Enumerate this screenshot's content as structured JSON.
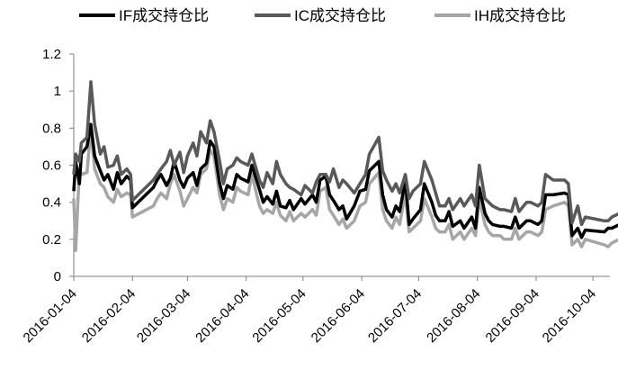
{
  "chart_data": {
    "type": "line",
    "title": "",
    "xlabel": "",
    "ylabel": "",
    "ylim": [
      0,
      1.2
    ],
    "yticks": [
      "0",
      "0.2",
      "0.4",
      "0.6",
      "0.8",
      "1",
      "1.2"
    ],
    "xticks": [
      "2016-01-04",
      "2016-02-04",
      "2016-03-04",
      "2016-04-04",
      "2016-05-04",
      "2016-06-04",
      "2016-07-04",
      "2016-08-04",
      "2016-09-04",
      "2016-10-04"
    ],
    "grid": false,
    "legend": "top",
    "series": [
      {
        "name": "IF成交持仓比",
        "color": "#000000",
        "x": [
          "2016-01-04",
          "2016-01-05",
          "2016-01-07",
          "2016-01-08",
          "2016-01-11",
          "2016-01-13",
          "2016-01-15",
          "2016-01-18",
          "2016-01-20",
          "2016-01-22",
          "2016-01-25",
          "2016-01-27",
          "2016-01-29",
          "2016-02-01",
          "2016-02-03",
          "2016-02-04",
          "2016-02-15",
          "2016-02-17",
          "2016-02-19",
          "2016-02-22",
          "2016-02-24",
          "2016-02-26",
          "2016-02-29",
          "2016-03-02",
          "2016-03-04",
          "2016-03-07",
          "2016-03-09",
          "2016-03-11",
          "2016-03-14",
          "2016-03-16",
          "2016-03-18",
          "2016-03-21",
          "2016-03-23",
          "2016-03-25",
          "2016-03-28",
          "2016-03-30",
          "2016-04-01",
          "2016-04-05",
          "2016-04-07",
          "2016-04-11",
          "2016-04-13",
          "2016-04-15",
          "2016-04-18",
          "2016-04-20",
          "2016-04-22",
          "2016-04-25",
          "2016-04-27",
          "2016-04-29",
          "2016-05-03",
          "2016-05-05",
          "2016-05-09",
          "2016-05-11",
          "2016-05-13",
          "2016-05-16",
          "2016-05-18",
          "2016-05-20",
          "2016-05-23",
          "2016-05-25",
          "2016-05-27",
          "2016-05-31",
          "2016-06-03",
          "2016-06-06",
          "2016-06-08",
          "2016-06-13",
          "2016-06-15",
          "2016-06-17",
          "2016-06-20",
          "2016-06-22",
          "2016-06-24",
          "2016-06-27",
          "2016-06-29",
          "2016-07-01",
          "2016-07-05",
          "2016-07-07",
          "2016-07-11",
          "2016-07-13",
          "2016-07-15",
          "2016-07-18",
          "2016-07-20",
          "2016-07-22",
          "2016-07-26",
          "2016-07-28",
          "2016-08-01",
          "2016-08-03",
          "2016-08-05",
          "2016-08-08",
          "2016-08-10",
          "2016-08-12",
          "2016-08-16",
          "2016-08-18",
          "2016-08-22",
          "2016-08-24",
          "2016-08-26",
          "2016-08-30",
          "2016-09-01",
          "2016-09-05",
          "2016-09-07",
          "2016-09-09",
          "2016-09-13",
          "2016-09-19",
          "2016-09-21",
          "2016-09-23",
          "2016-09-26",
          "2016-09-28",
          "2016-09-30",
          "2016-10-10",
          "2016-10-12",
          "2016-10-14",
          "2016-10-18",
          "2016-10-20"
        ],
        "values": [
          0.46,
          0.62,
          0.5,
          0.66,
          0.7,
          0.82,
          0.65,
          0.57,
          0.52,
          0.55,
          0.47,
          0.56,
          0.5,
          0.54,
          0.52,
          0.37,
          0.48,
          0.52,
          0.55,
          0.49,
          0.53,
          0.62,
          0.52,
          0.48,
          0.53,
          0.56,
          0.49,
          0.58,
          0.61,
          0.73,
          0.7,
          0.5,
          0.42,
          0.49,
          0.47,
          0.55,
          0.53,
          0.51,
          0.6,
          0.47,
          0.4,
          0.43,
          0.39,
          0.46,
          0.38,
          0.37,
          0.41,
          0.36,
          0.42,
          0.39,
          0.44,
          0.4,
          0.52,
          0.54,
          0.44,
          0.41,
          0.36,
          0.38,
          0.31,
          0.38,
          0.46,
          0.47,
          0.57,
          0.62,
          0.44,
          0.36,
          0.32,
          0.38,
          0.35,
          0.52,
          0.28,
          0.31,
          0.36,
          0.5,
          0.4,
          0.33,
          0.3,
          0.3,
          0.35,
          0.27,
          0.3,
          0.26,
          0.32,
          0.26,
          0.48,
          0.34,
          0.3,
          0.28,
          0.27,
          0.27,
          0.26,
          0.32,
          0.26,
          0.3,
          0.3,
          0.28,
          0.3,
          0.44,
          0.44,
          0.45,
          0.44,
          0.22,
          0.26,
          0.21,
          0.25,
          0.24,
          0.26,
          0.26,
          0.28,
          0.3
        ]
      },
      {
        "name": "IC成交持仓比",
        "color": "#595959",
        "x": [
          "2016-01-04",
          "2016-01-05",
          "2016-01-07",
          "2016-01-08",
          "2016-01-11",
          "2016-01-13",
          "2016-01-15",
          "2016-01-18",
          "2016-01-20",
          "2016-01-22",
          "2016-01-25",
          "2016-01-27",
          "2016-01-29",
          "2016-02-01",
          "2016-02-03",
          "2016-02-04",
          "2016-02-15",
          "2016-02-17",
          "2016-02-19",
          "2016-02-22",
          "2016-02-24",
          "2016-02-26",
          "2016-02-29",
          "2016-03-02",
          "2016-03-04",
          "2016-03-07",
          "2016-03-09",
          "2016-03-11",
          "2016-03-14",
          "2016-03-16",
          "2016-03-18",
          "2016-03-21",
          "2016-03-23",
          "2016-03-25",
          "2016-03-28",
          "2016-03-30",
          "2016-04-01",
          "2016-04-05",
          "2016-04-07",
          "2016-04-11",
          "2016-04-13",
          "2016-04-15",
          "2016-04-18",
          "2016-04-20",
          "2016-04-22",
          "2016-04-25",
          "2016-04-27",
          "2016-04-29",
          "2016-05-03",
          "2016-05-05",
          "2016-05-09",
          "2016-05-11",
          "2016-05-13",
          "2016-05-16",
          "2016-05-18",
          "2016-05-20",
          "2016-05-23",
          "2016-05-25",
          "2016-05-27",
          "2016-05-31",
          "2016-06-03",
          "2016-06-06",
          "2016-06-08",
          "2016-06-13",
          "2016-06-15",
          "2016-06-17",
          "2016-06-20",
          "2016-06-22",
          "2016-06-24",
          "2016-06-27",
          "2016-06-29",
          "2016-07-01",
          "2016-07-05",
          "2016-07-07",
          "2016-07-11",
          "2016-07-13",
          "2016-07-15",
          "2016-07-18",
          "2016-07-20",
          "2016-07-22",
          "2016-07-26",
          "2016-07-28",
          "2016-08-01",
          "2016-08-03",
          "2016-08-05",
          "2016-08-08",
          "2016-08-10",
          "2016-08-12",
          "2016-08-16",
          "2016-08-18",
          "2016-08-22",
          "2016-08-24",
          "2016-08-26",
          "2016-08-30",
          "2016-09-01",
          "2016-09-05",
          "2016-09-07",
          "2016-09-09",
          "2016-09-13",
          "2016-09-19",
          "2016-09-21",
          "2016-09-23",
          "2016-09-26",
          "2016-09-28",
          "2016-09-30",
          "2016-10-10",
          "2016-10-12",
          "2016-10-14",
          "2016-10-18",
          "2016-10-20"
        ],
        "values": [
          0.55,
          0.66,
          0.62,
          0.72,
          0.75,
          1.05,
          0.82,
          0.66,
          0.7,
          0.59,
          0.6,
          0.65,
          0.55,
          0.58,
          0.55,
          0.41,
          0.52,
          0.55,
          0.58,
          0.62,
          0.68,
          0.6,
          0.67,
          0.56,
          0.65,
          0.72,
          0.65,
          0.78,
          0.72,
          0.84,
          0.78,
          0.62,
          0.5,
          0.58,
          0.6,
          0.64,
          0.62,
          0.6,
          0.66,
          0.52,
          0.48,
          0.56,
          0.5,
          0.62,
          0.55,
          0.5,
          0.48,
          0.47,
          0.44,
          0.49,
          0.45,
          0.51,
          0.55,
          0.55,
          0.51,
          0.58,
          0.48,
          0.52,
          0.5,
          0.45,
          0.5,
          0.55,
          0.66,
          0.75,
          0.57,
          0.52,
          0.46,
          0.5,
          0.45,
          0.55,
          0.42,
          0.46,
          0.5,
          0.62,
          0.52,
          0.45,
          0.38,
          0.38,
          0.42,
          0.36,
          0.42,
          0.38,
          0.44,
          0.38,
          0.6,
          0.42,
          0.4,
          0.38,
          0.36,
          0.36,
          0.35,
          0.42,
          0.35,
          0.4,
          0.4,
          0.38,
          0.4,
          0.55,
          0.52,
          0.52,
          0.5,
          0.29,
          0.38,
          0.28,
          0.32,
          0.3,
          0.3,
          0.32,
          0.34,
          0.36
        ]
      },
      {
        "name": "IH成交持仓比",
        "color": "#a6a6a6",
        "x": [
          "2016-01-04",
          "2016-01-05",
          "2016-01-07",
          "2016-01-08",
          "2016-01-11",
          "2016-01-13",
          "2016-01-15",
          "2016-01-18",
          "2016-01-20",
          "2016-01-22",
          "2016-01-25",
          "2016-01-27",
          "2016-01-29",
          "2016-02-01",
          "2016-02-03",
          "2016-02-04",
          "2016-02-15",
          "2016-02-17",
          "2016-02-19",
          "2016-02-22",
          "2016-02-24",
          "2016-02-26",
          "2016-02-29",
          "2016-03-02",
          "2016-03-04",
          "2016-03-07",
          "2016-03-09",
          "2016-03-11",
          "2016-03-14",
          "2016-03-16",
          "2016-03-18",
          "2016-03-21",
          "2016-03-23",
          "2016-03-25",
          "2016-03-28",
          "2016-03-30",
          "2016-04-01",
          "2016-04-05",
          "2016-04-07",
          "2016-04-11",
          "2016-04-13",
          "2016-04-15",
          "2016-04-18",
          "2016-04-20",
          "2016-04-22",
          "2016-04-25",
          "2016-04-27",
          "2016-04-29",
          "2016-05-03",
          "2016-05-05",
          "2016-05-09",
          "2016-05-11",
          "2016-05-13",
          "2016-05-16",
          "2016-05-18",
          "2016-05-20",
          "2016-05-23",
          "2016-05-25",
          "2016-05-27",
          "2016-05-31",
          "2016-06-03",
          "2016-06-06",
          "2016-06-08",
          "2016-06-13",
          "2016-06-15",
          "2016-06-17",
          "2016-06-20",
          "2016-06-22",
          "2016-06-24",
          "2016-06-27",
          "2016-06-29",
          "2016-07-01",
          "2016-07-05",
          "2016-07-07",
          "2016-07-11",
          "2016-07-13",
          "2016-07-15",
          "2016-07-18",
          "2016-07-20",
          "2016-07-22",
          "2016-07-26",
          "2016-07-28",
          "2016-08-01",
          "2016-08-03",
          "2016-08-05",
          "2016-08-08",
          "2016-08-10",
          "2016-08-12",
          "2016-08-16",
          "2016-08-18",
          "2016-08-22",
          "2016-08-24",
          "2016-08-26",
          "2016-08-30",
          "2016-09-01",
          "2016-09-05",
          "2016-09-07",
          "2016-09-09",
          "2016-09-13",
          "2016-09-19",
          "2016-09-21",
          "2016-09-23",
          "2016-09-26",
          "2016-09-28",
          "2016-09-30",
          "2016-10-10",
          "2016-10-12",
          "2016-10-14",
          "2016-10-18",
          "2016-10-20"
        ],
        "values": [
          0.42,
          0.14,
          0.58,
          0.55,
          0.56,
          0.8,
          0.58,
          0.5,
          0.48,
          0.43,
          0.4,
          0.47,
          0.43,
          0.45,
          0.44,
          0.32,
          0.38,
          0.42,
          0.45,
          0.42,
          0.5,
          0.55,
          0.46,
          0.38,
          0.42,
          0.48,
          0.45,
          0.55,
          0.58,
          0.68,
          0.65,
          0.44,
          0.36,
          0.42,
          0.4,
          0.48,
          0.46,
          0.44,
          0.55,
          0.38,
          0.34,
          0.36,
          0.34,
          0.4,
          0.33,
          0.3,
          0.35,
          0.3,
          0.34,
          0.32,
          0.36,
          0.33,
          0.46,
          0.48,
          0.36,
          0.33,
          0.28,
          0.31,
          0.26,
          0.3,
          0.38,
          0.4,
          0.5,
          0.56,
          0.36,
          0.3,
          0.26,
          0.32,
          0.28,
          0.45,
          0.24,
          0.26,
          0.3,
          0.42,
          0.32,
          0.26,
          0.24,
          0.24,
          0.28,
          0.2,
          0.24,
          0.2,
          0.26,
          0.22,
          0.42,
          0.28,
          0.24,
          0.22,
          0.22,
          0.2,
          0.2,
          0.26,
          0.2,
          0.24,
          0.24,
          0.22,
          0.24,
          0.36,
          0.38,
          0.4,
          0.38,
          0.17,
          0.2,
          0.16,
          0.2,
          0.17,
          0.16,
          0.18,
          0.2,
          0.22
        ]
      }
    ]
  }
}
